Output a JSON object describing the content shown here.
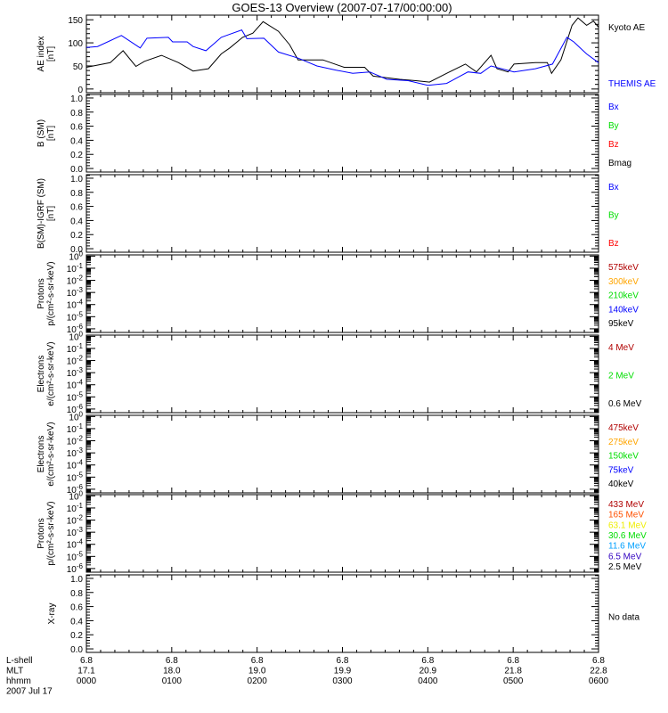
{
  "chart_data": {
    "type": "line",
    "title": "GOES-13 Overview (2007-07-17/00:00:00)",
    "x_axis": {
      "unit": "hours since 2007-07-17 00:00",
      "range": [
        0,
        6
      ],
      "row_labels": [
        "L-shell",
        "MLT",
        "hhmm"
      ],
      "date_label": "2007 Jul 17",
      "ticks": [
        {
          "x": 0,
          "lshell": "6.8",
          "mlt": "17.1",
          "hhmm": "0000"
        },
        {
          "x": 1,
          "lshell": "6.8",
          "mlt": "18.0",
          "hhmm": "0100"
        },
        {
          "x": 2,
          "lshell": "6.8",
          "mlt": "19.0",
          "hhmm": "0200"
        },
        {
          "x": 3,
          "lshell": "6.8",
          "mlt": "19.9",
          "hhmm": "0300"
        },
        {
          "x": 4,
          "lshell": "6.8",
          "mlt": "20.9",
          "hhmm": "0400"
        },
        {
          "x": 5,
          "lshell": "6.8",
          "mlt": "21.8",
          "hhmm": "0500"
        },
        {
          "x": 6,
          "lshell": "6.8",
          "mlt": "22.8",
          "hhmm": "0600"
        }
      ]
    },
    "panels": [
      {
        "ylabel": [
          "AE index",
          "[nT]"
        ],
        "scale": "linear",
        "ylim": [
          -8,
          160
        ],
        "yticks": [
          "0",
          "50",
          "100",
          "150"
        ],
        "ytick_values": [
          0,
          50,
          100,
          150
        ],
        "legend": [
          {
            "label": "Kyoto AE",
            "color": "#000000"
          },
          {
            "label": "THEMIS AE",
            "color": "#0000ff"
          }
        ],
        "series": [
          {
            "name": "Kyoto AE",
            "color": "#000000",
            "x": [
              0,
              0.28,
              0.43,
              0.58,
              0.68,
              0.88,
              1.08,
              1.25,
              1.43,
              1.58,
              1.68,
              1.83,
              1.95,
              2.07,
              2.25,
              2.38,
              2.48,
              2.77,
              3.02,
              3.26,
              3.36,
              3.67,
              3.86,
              4.02,
              4.22,
              4.44,
              4.57,
              4.74,
              4.81,
              4.94,
              5.01,
              5.26,
              5.4,
              5.45,
              5.56,
              5.69,
              5.76,
              5.86,
              5.94,
              6.0
            ],
            "y": [
              47,
              57,
              83,
              49,
              60,
              73,
              57,
              39,
              44,
              76,
              89,
              112,
              121,
              146,
              125,
              96,
              63,
              63,
              47,
              47,
              28,
              21,
              18,
              15,
              34,
              54,
              37,
              73,
              44,
              37,
              54,
              57,
              57,
              34,
              63,
              138,
              154,
              138,
              147,
              134
            ]
          },
          {
            "name": "THEMIS AE",
            "color": "#0000ff",
            "x": [
              0,
              0.13,
              0.41,
              0.63,
              0.71,
              0.96,
              1.01,
              1.18,
              1.25,
              1.4,
              1.58,
              1.82,
              1.88,
              2.08,
              2.25,
              2.48,
              2.7,
              2.92,
              3.12,
              3.32,
              3.52,
              3.77,
              4.0,
              4.22,
              4.47,
              4.62,
              4.74,
              5.01,
              5.26,
              5.46,
              5.63,
              5.71,
              5.86,
              6.0
            ],
            "y": [
              90,
              92,
              116,
              89,
              110,
              112,
              102,
              102,
              92,
              83,
              112,
              128,
              109,
              110,
              80,
              67,
              50,
              41,
              34,
              37,
              21,
              18,
              8,
              12,
              37,
              34,
              50,
              37,
              44,
              54,
              112,
              102,
              76,
              57
            ]
          }
        ]
      },
      {
        "ylabel": [
          "B (SM)",
          "[nT]"
        ],
        "scale": "linear",
        "ylim": [
          -0.05,
          1.05
        ],
        "yticks": [
          "0.0",
          "0.2",
          "0.4",
          "0.6",
          "0.8",
          "1.0"
        ],
        "ytick_values": [
          0,
          0.2,
          0.4,
          0.6,
          0.8,
          1.0
        ],
        "legend": [
          {
            "label": "Bx",
            "color": "#0000ff"
          },
          {
            "label": "By",
            "color": "#00dd00"
          },
          {
            "label": "Bz",
            "color": "#ff0000"
          },
          {
            "label": "Bmag",
            "color": "#000000"
          }
        ],
        "series": []
      },
      {
        "ylabel": [
          "B(SM)-IGRF (SM)",
          "[nT]"
        ],
        "scale": "linear",
        "ylim": [
          -0.05,
          1.05
        ],
        "yticks": [
          "0.0",
          "0.2",
          "0.4",
          "0.6",
          "0.8",
          "1.0"
        ],
        "ytick_values": [
          0,
          0.2,
          0.4,
          0.6,
          0.8,
          1.0
        ],
        "legend": [
          {
            "label": "Bx",
            "color": "#0000ff"
          },
          {
            "label": "By",
            "color": "#00dd00"
          },
          {
            "label": "Bz",
            "color": "#ff0000"
          }
        ],
        "series": []
      },
      {
        "ylabel": [
          "Protons",
          "p/(cm²-s-sr-keV)"
        ],
        "scale": "log",
        "ylim": [
          -6.3,
          0.1
        ],
        "yticks": [
          "0",
          "-1",
          "-2",
          "-3",
          "-4",
          "-5",
          "-6"
        ],
        "ytick_values": [
          0,
          -1,
          -2,
          -3,
          -4,
          -5,
          -6
        ],
        "legend": [
          {
            "label": "575keV",
            "color": "#b00000"
          },
          {
            "label": "300keV",
            "color": "#ffa500"
          },
          {
            "label": "210keV",
            "color": "#00dd00"
          },
          {
            "label": "140keV",
            "color": "#0000ff"
          },
          {
            "label": "95keV",
            "color": "#000000"
          }
        ],
        "series": []
      },
      {
        "ylabel": [
          "Electrons",
          "e/(cm²-s-sr-keV)"
        ],
        "scale": "log",
        "ylim": [
          -6.3,
          0.1
        ],
        "yticks": [
          "0",
          "-1",
          "-2",
          "-3",
          "-4",
          "-5",
          "-6"
        ],
        "ytick_values": [
          0,
          -1,
          -2,
          -3,
          -4,
          -5,
          -6
        ],
        "legend": [
          {
            "label": "4 MeV",
            "color": "#b00000"
          },
          {
            "label": "2 MeV",
            "color": "#00dd00"
          },
          {
            "label": "0.6 MeV",
            "color": "#000000"
          }
        ],
        "series": []
      },
      {
        "ylabel": [
          "Electrons",
          "e/(cm²-s-sr-keV)"
        ],
        "scale": "log",
        "ylim": [
          -6.3,
          0.1
        ],
        "yticks": [
          "0",
          "-1",
          "-2",
          "-3",
          "-4",
          "-5",
          "-6"
        ],
        "ytick_values": [
          0,
          -1,
          -2,
          -3,
          -4,
          -5,
          -6
        ],
        "legend": [
          {
            "label": "475keV",
            "color": "#b00000"
          },
          {
            "label": "275keV",
            "color": "#ffa500"
          },
          {
            "label": "150keV",
            "color": "#00dd00"
          },
          {
            "label": "75keV",
            "color": "#0000ff"
          },
          {
            "label": "40keV",
            "color": "#000000"
          }
        ],
        "series": []
      },
      {
        "ylabel": [
          "Protons",
          "p/(cm²-s-sr-keV)"
        ],
        "scale": "log",
        "ylim": [
          -6.3,
          0.1
        ],
        "yticks": [
          "0",
          "-1",
          "-2",
          "-3",
          "-4",
          "-5",
          "-6"
        ],
        "ytick_values": [
          0,
          -1,
          -2,
          -3,
          -4,
          -5,
          -6
        ],
        "legend": [
          {
            "label": "433 MeV",
            "color": "#b00000"
          },
          {
            "label": "165 MeV",
            "color": "#ff5000"
          },
          {
            "label": "63.1 MeV",
            "color": "#eeee00"
          },
          {
            "label": "30.6 MeV",
            "color": "#00dd00"
          },
          {
            "label": "11.6 MeV",
            "color": "#00a0ff"
          },
          {
            "label": "6.5 MeV",
            "color": "#3000c0"
          },
          {
            "label": "2.5 MeV",
            "color": "#000000"
          }
        ],
        "series": []
      },
      {
        "ylabel": [
          "X-ray"
        ],
        "scale": "linear",
        "ylim": [
          -0.05,
          1.05
        ],
        "yticks": [
          "0.0",
          "0.2",
          "0.4",
          "0.6",
          "0.8",
          "1.0"
        ],
        "ytick_values": [
          0,
          0.2,
          0.4,
          0.6,
          0.8,
          1.0
        ],
        "legend": [
          {
            "label": "No data",
            "color": "#000000"
          }
        ],
        "series": []
      }
    ]
  }
}
